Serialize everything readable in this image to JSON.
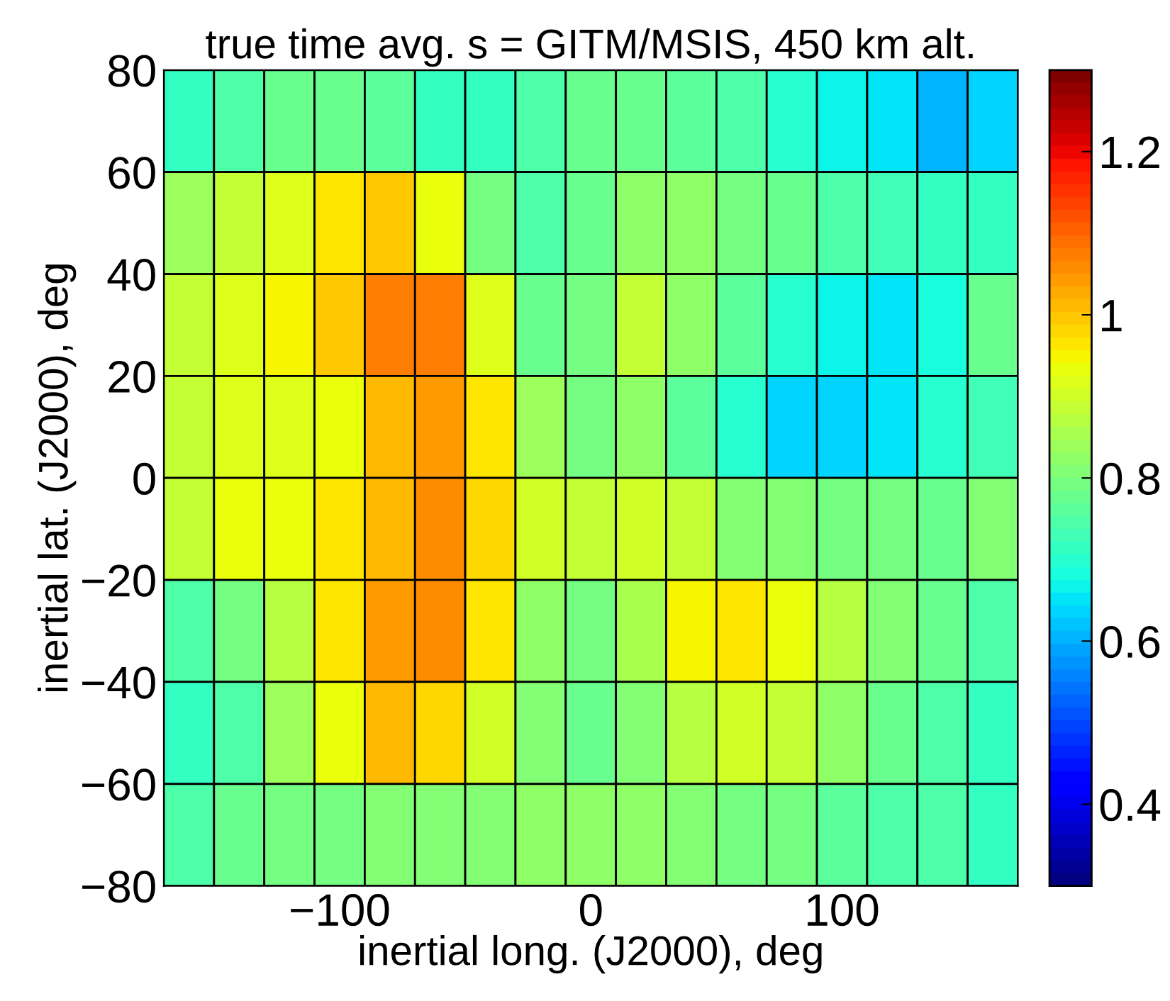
{
  "chart_data": {
    "type": "heatmap",
    "title": "true time avg. s = GITM/MSIS, 450 km alt.",
    "xlabel": "inertial long. (J2000), deg",
    "ylabel": "inertial lat. (J2000), deg",
    "x": [
      -160,
      -140,
      -120,
      -100,
      -80,
      -60,
      -40,
      -20,
      0,
      20,
      40,
      60,
      80,
      100,
      120,
      140,
      160
    ],
    "y": [
      70,
      50,
      30,
      10,
      -10,
      -30,
      -50,
      -70
    ],
    "cells": [
      [
        0.71,
        0.75,
        0.78,
        0.78,
        0.76,
        0.71,
        0.71,
        0.75,
        0.78,
        0.78,
        0.76,
        0.74,
        0.7,
        0.66,
        0.65,
        0.61,
        0.63
      ],
      [
        0.84,
        0.88,
        0.91,
        0.97,
        1.0,
        0.93,
        0.79,
        0.75,
        0.78,
        0.82,
        0.82,
        0.79,
        0.77,
        0.74,
        0.73,
        0.72,
        0.72
      ],
      [
        0.89,
        0.91,
        0.95,
        1.0,
        1.07,
        1.07,
        0.91,
        0.77,
        0.79,
        0.88,
        0.83,
        0.76,
        0.7,
        0.67,
        0.65,
        0.68,
        0.77
      ],
      [
        0.89,
        0.91,
        0.91,
        0.93,
        1.01,
        1.04,
        0.96,
        0.84,
        0.79,
        0.83,
        0.76,
        0.7,
        0.64,
        0.64,
        0.65,
        0.7,
        0.73
      ],
      [
        0.88,
        0.93,
        0.93,
        0.97,
        1.01,
        1.05,
        0.98,
        0.9,
        0.88,
        0.9,
        0.88,
        0.8,
        0.8,
        0.79,
        0.79,
        0.77,
        0.8
      ],
      [
        0.75,
        0.79,
        0.87,
        0.96,
        1.04,
        1.05,
        0.97,
        0.83,
        0.79,
        0.86,
        0.95,
        0.96,
        0.93,
        0.87,
        0.8,
        0.78,
        0.75
      ],
      [
        0.71,
        0.74,
        0.84,
        0.93,
        1.01,
        0.98,
        0.9,
        0.8,
        0.77,
        0.8,
        0.87,
        0.9,
        0.88,
        0.83,
        0.78,
        0.74,
        0.72
      ],
      [
        0.75,
        0.77,
        0.79,
        0.79,
        0.8,
        0.81,
        0.81,
        0.83,
        0.83,
        0.83,
        0.8,
        0.79,
        0.79,
        0.76,
        0.75,
        0.74,
        0.72
      ]
    ],
    "xlim": [
      -170,
      170
    ],
    "ylim": [
      -80,
      80
    ],
    "xticks": [
      {
        "value": -100,
        "label": "−100"
      },
      0,
      100
    ],
    "yticks": [
      {
        "value": -80,
        "label": "−80"
      },
      {
        "value": -60,
        "label": "−60"
      },
      {
        "value": -40,
        "label": "−40"
      },
      {
        "value": -20,
        "label": "−20"
      },
      0,
      20,
      40,
      60,
      80
    ],
    "clim": [
      0.3,
      1.3
    ],
    "cticks": [
      0.4,
      0.6,
      0.8,
      1,
      1.2
    ],
    "grid": false
  }
}
